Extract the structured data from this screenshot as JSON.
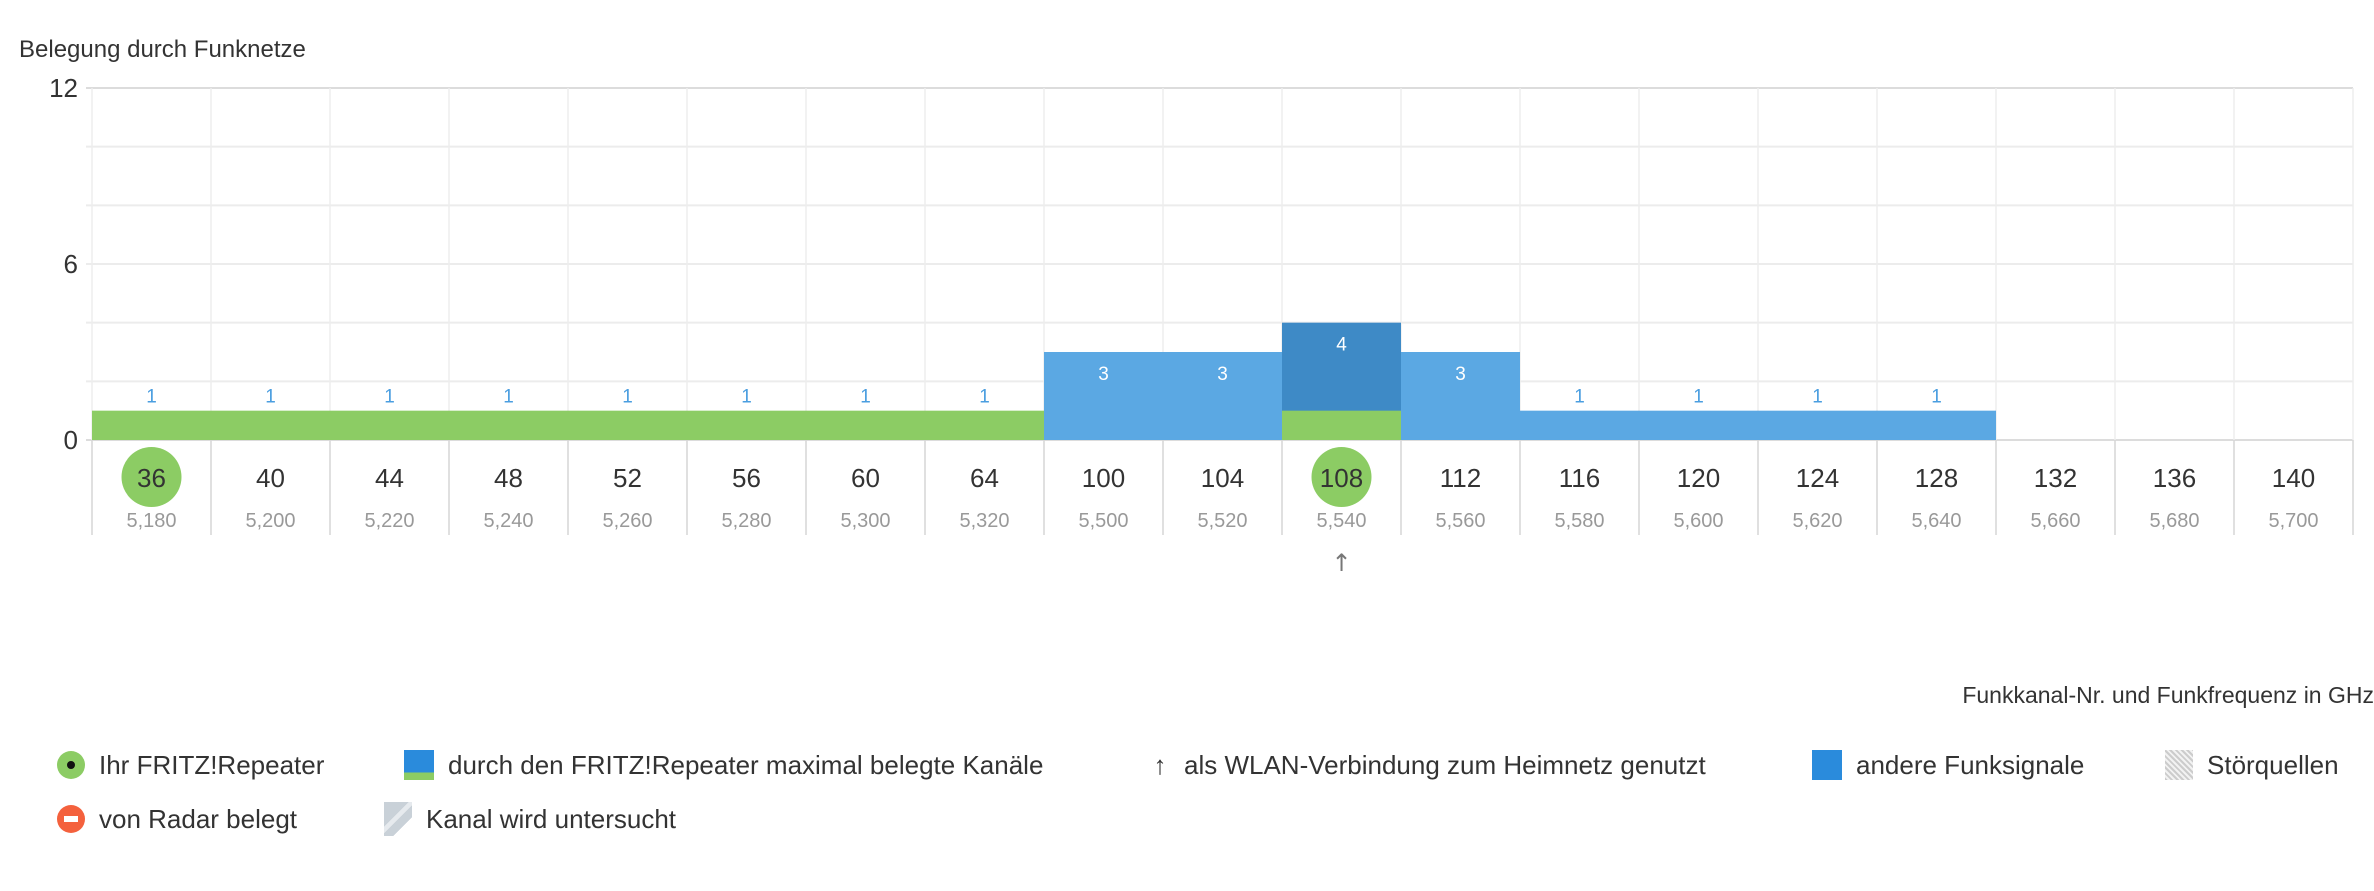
{
  "chart_data": {
    "type": "bar",
    "title": "Belegung durch Funknetze",
    "xlabel": "Funkkanal-Nr. und Funkfrequenz in GHz",
    "ylim": [
      0,
      12
    ],
    "yticks": [
      "0",
      "6",
      "12"
    ],
    "grid": true,
    "categories": [
      "36",
      "40",
      "44",
      "48",
      "52",
      "56",
      "60",
      "64",
      "100",
      "104",
      "108",
      "112",
      "116",
      "120",
      "124",
      "128",
      "132",
      "136",
      "140"
    ],
    "frequencies": [
      "5,180",
      "5,200",
      "5,220",
      "5,240",
      "5,260",
      "5,280",
      "5,300",
      "5,320",
      "5,500",
      "5,520",
      "5,540",
      "5,560",
      "5,580",
      "5,600",
      "5,620",
      "5,640",
      "5,660",
      "5,680",
      "5,700"
    ],
    "values": [
      1,
      1,
      1,
      1,
      1,
      1,
      1,
      1,
      3,
      3,
      4,
      3,
      1,
      1,
      1,
      1,
      0,
      0,
      0
    ],
    "repeater_max_used": [
      1,
      1,
      1,
      1,
      1,
      1,
      1,
      1,
      0,
      0,
      1,
      0,
      0,
      0,
      0,
      0,
      0,
      0,
      0
    ],
    "repeater_channels": [
      "36",
      "108"
    ],
    "uplink_channel": "108",
    "uplink_icon": "arrow-up-icon",
    "colors": {
      "repeater": "#8ccc64",
      "other": "#5ba8e3",
      "active": "#3e8ac6",
      "label_blue": "#4a9ee0"
    }
  },
  "legend": {
    "row1": [
      {
        "label": "Ihr FRITZ!Repeater",
        "icon": "repeater-dot-icon"
      },
      {
        "label": "durch den FRITZ!Repeater maximal belegte Kanäle",
        "icon": "used-channels-square-icon"
      },
      {
        "label": "als WLAN-Verbindung zum Heimnetz genutzt",
        "icon": "arrow-up-icon",
        "glyph": "↑"
      },
      {
        "label": "andere Funksignale",
        "icon": "other-signals-square-icon"
      },
      {
        "label": "Störquellen",
        "icon": "interference-hatch-icon"
      }
    ],
    "row2": [
      {
        "label": "von Radar belegt",
        "icon": "radar-icon"
      },
      {
        "label": "Kanal wird untersucht",
        "icon": "investigating-icon"
      }
    ]
  }
}
